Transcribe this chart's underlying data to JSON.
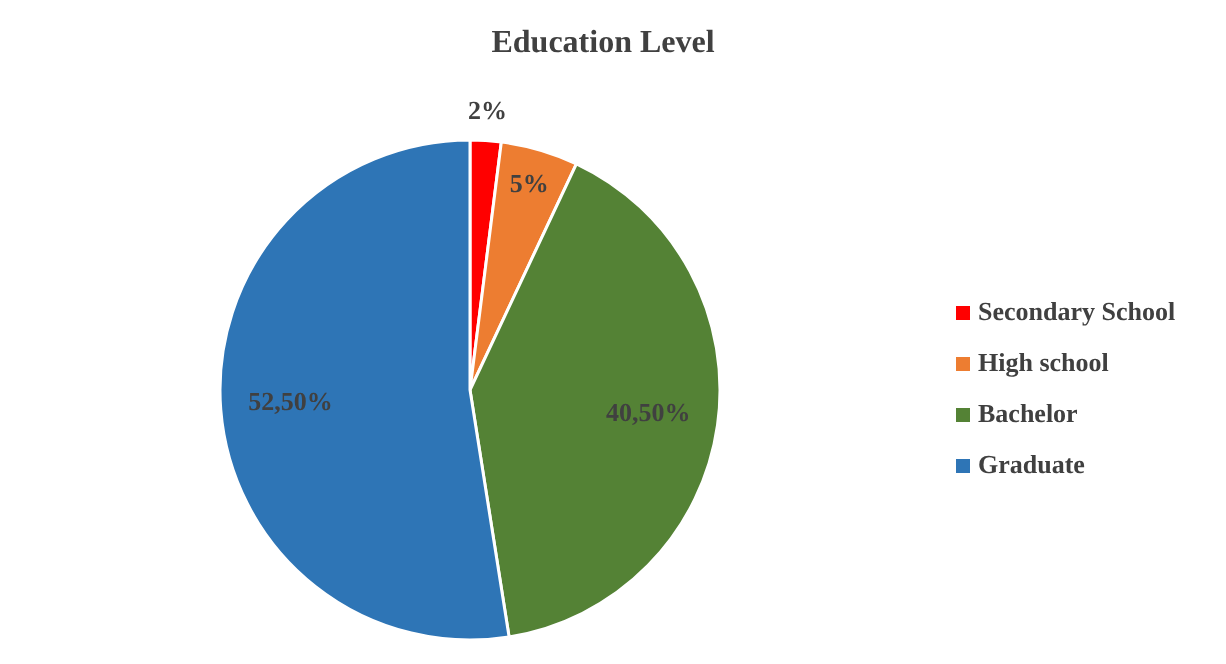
{
  "chart_data": {
    "type": "pie",
    "title": "Education Level",
    "categories": [
      "Secondary School",
      "High school",
      "Bachelor",
      "Graduate"
    ],
    "values": [
      2,
      5,
      40.5,
      52.5
    ],
    "value_labels": [
      "2%",
      "5%",
      "40,50%",
      "52,50%"
    ],
    "colors": [
      "#ff0000",
      "#ed7d31",
      "#548235",
      "#2e75b6"
    ],
    "legend": "right"
  }
}
